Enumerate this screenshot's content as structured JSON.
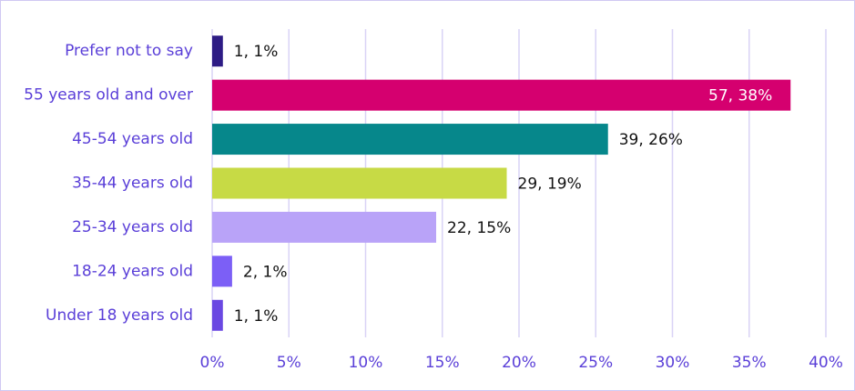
{
  "chart_data": {
    "type": "bar",
    "orientation": "horizontal",
    "categories": [
      "Prefer not to say",
      "55 years old and over",
      "45-54 years old",
      "35-44 years old",
      "25-34 years old",
      "18-24 years old",
      "Under 18 years old"
    ],
    "values": [
      0.7,
      37.7,
      25.8,
      19.2,
      14.6,
      1.3,
      0.7
    ],
    "value_labels": [
      "1, 1%",
      "57, 38%",
      "39, 26%",
      "29, 19%",
      "22, 15%",
      "2, 1%",
      "1, 1%"
    ],
    "colors": [
      "#2d1b85",
      "#d5006f",
      "#06878b",
      "#c7da45",
      "#b9a3f8",
      "#7c5ff6",
      "#6a48e2"
    ],
    "xlim": [
      0,
      40
    ],
    "xticks": [
      {
        "value": 0,
        "label": "0%"
      },
      {
        "value": 5,
        "label": "5%"
      },
      {
        "value": 10,
        "label": "10%"
      },
      {
        "value": 15,
        "label": "15%"
      },
      {
        "value": 20,
        "label": "20%"
      },
      {
        "value": 25,
        "label": "25%"
      },
      {
        "value": 30,
        "label": "30%"
      },
      {
        "value": 35,
        "label": "35%"
      },
      {
        "value": 40,
        "label": "40%"
      }
    ],
    "grid": true
  }
}
